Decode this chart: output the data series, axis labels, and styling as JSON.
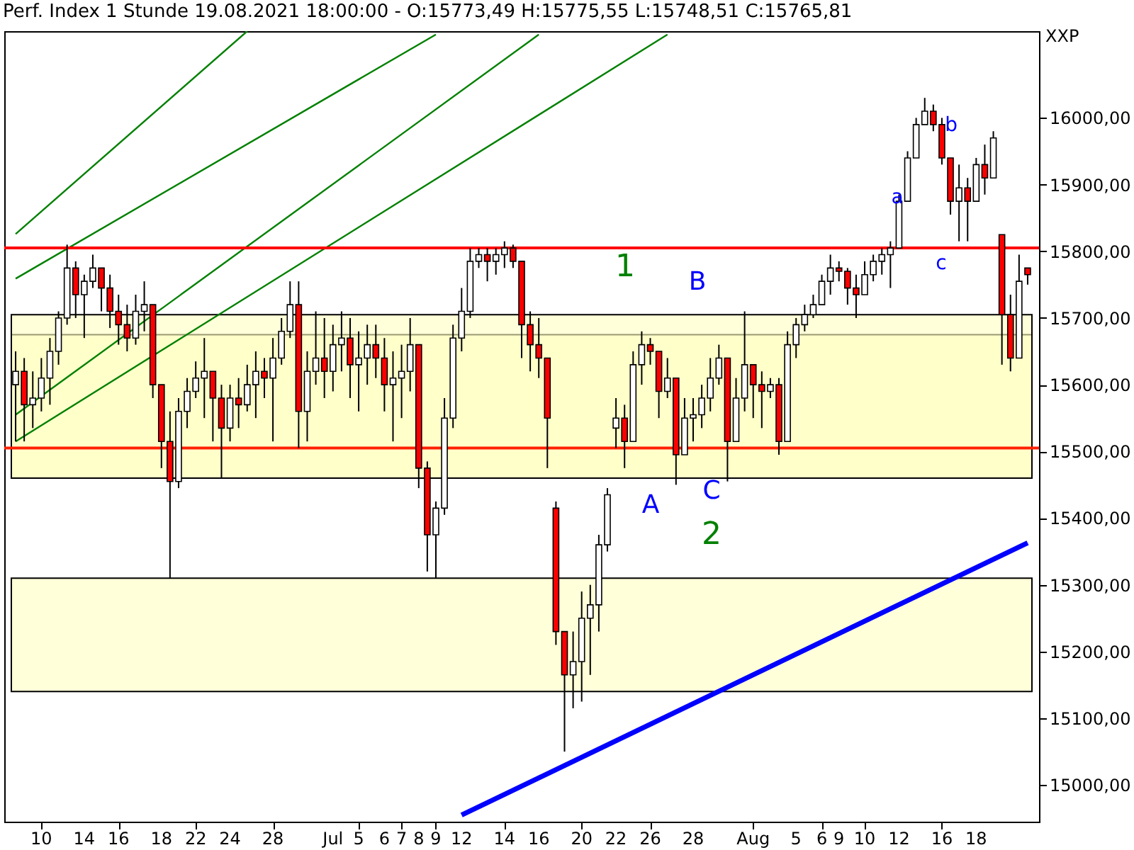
{
  "chart_data": {
    "type": "candlestick",
    "title": "Perf. Index 1 Stunde  19.08.2021 18:00:00 - O:15773,49 H:15775,55 L:15748,51 C:15765,81",
    "ylabel": "XXP",
    "categories": [
      null,
      null,
      null,
      "10",
      null,
      null,
      null,
      null,
      "14",
      null,
      null,
      null,
      "16",
      null,
      null,
      null,
      null,
      "18",
      null,
      null,
      null,
      "22",
      null,
      null,
      null,
      "24",
      null,
      null,
      null,
      null,
      "28",
      null,
      null,
      null,
      null,
      null,
      null,
      "Jul",
      null,
      null,
      "5",
      null,
      null,
      "6",
      null,
      "7",
      null,
      "8",
      null,
      "9",
      null,
      null,
      "12",
      null,
      null,
      null,
      null,
      "14",
      null,
      null,
      null,
      "16",
      null,
      null,
      null,
      null,
      "20",
      null,
      null,
      null,
      "22",
      null,
      null,
      null,
      "26",
      null,
      null,
      null,
      null,
      "28",
      null,
      null,
      null,
      null,
      null,
      null,
      "Aug",
      null,
      null,
      null,
      null,
      "5",
      null,
      null,
      "6",
      null,
      "9",
      null,
      null,
      "10",
      null,
      null,
      null,
      "12",
      null,
      null,
      null,
      null,
      "16",
      null,
      null,
      null,
      "18",
      null,
      null,
      null,
      null,
      null,
      null
    ],
    "ohlc": [
      [
        15600,
        15650,
        15515,
        15620
      ],
      [
        15620,
        15640,
        15515,
        15570
      ],
      [
        15570,
        15620,
        15535,
        15580
      ],
      [
        15580,
        15640,
        15560,
        15610
      ],
      [
        15610,
        15670,
        15570,
        15650
      ],
      [
        15650,
        15710,
        15630,
        15700
      ],
      [
        15700,
        15810,
        15690,
        15775
      ],
      [
        15775,
        15785,
        15700,
        15735
      ],
      [
        15735,
        15765,
        15670,
        15755
      ],
      [
        15755,
        15795,
        15745,
        15775
      ],
      [
        15775,
        15775,
        15710,
        15745
      ],
      [
        15745,
        15765,
        15685,
        15710
      ],
      [
        15710,
        15735,
        15660,
        15690
      ],
      [
        15690,
        15720,
        15650,
        15670
      ],
      [
        15670,
        15735,
        15660,
        15710
      ],
      [
        15710,
        15755,
        15680,
        15720
      ],
      [
        15720,
        15720,
        15580,
        15600
      ],
      [
        15600,
        15600,
        15475,
        15515
      ],
      [
        15515,
        15560,
        15310,
        15455
      ],
      [
        15455,
        15580,
        15445,
        15560
      ],
      [
        15560,
        15610,
        15535,
        15590
      ],
      [
        15590,
        15635,
        15580,
        15610
      ],
      [
        15610,
        15670,
        15550,
        15620
      ],
      [
        15620,
        15620,
        15515,
        15580
      ],
      [
        15580,
        15600,
        15460,
        15535
      ],
      [
        15535,
        15600,
        15515,
        15580
      ],
      [
        15580,
        15610,
        15535,
        15570
      ],
      [
        15570,
        15630,
        15560,
        15600
      ],
      [
        15600,
        15650,
        15550,
        15620
      ],
      [
        15620,
        15640,
        15580,
        15610
      ],
      [
        15610,
        15670,
        15515,
        15640
      ],
      [
        15640,
        15700,
        15630,
        15680
      ],
      [
        15680,
        15755,
        15670,
        15720
      ],
      [
        15720,
        15755,
        15505,
        15560
      ],
      [
        15560,
        15650,
        15515,
        15620
      ],
      [
        15620,
        15710,
        15600,
        15640
      ],
      [
        15640,
        15700,
        15580,
        15620
      ],
      [
        15620,
        15690,
        15590,
        15660
      ],
      [
        15660,
        15710,
        15620,
        15670
      ],
      [
        15670,
        15700,
        15580,
        15630
      ],
      [
        15630,
        15680,
        15560,
        15640
      ],
      [
        15640,
        15690,
        15600,
        15660
      ],
      [
        15660,
        15690,
        15610,
        15640
      ],
      [
        15640,
        15670,
        15560,
        15600
      ],
      [
        15600,
        15650,
        15515,
        15610
      ],
      [
        15610,
        15660,
        15550,
        15620
      ],
      [
        15620,
        15700,
        15590,
        15660
      ],
      [
        15660,
        15660,
        15445,
        15475
      ],
      [
        15475,
        15485,
        15320,
        15375
      ],
      [
        15375,
        15425,
        15310,
        15415
      ],
      [
        15415,
        15580,
        15405,
        15550
      ],
      [
        15550,
        15690,
        15535,
        15670
      ],
      [
        15670,
        15745,
        15650,
        15710
      ],
      [
        15710,
        15805,
        15700,
        15785
      ],
      [
        15785,
        15805,
        15775,
        15795
      ],
      [
        15795,
        15805,
        15755,
        15785
      ],
      [
        15785,
        15805,
        15765,
        15795
      ],
      [
        15795,
        15815,
        15775,
        15805
      ],
      [
        15805,
        15810,
        15775,
        15785
      ],
      [
        15785,
        15785,
        15640,
        15690
      ],
      [
        15690,
        15710,
        15620,
        15660
      ],
      [
        15660,
        15700,
        15610,
        15640
      ],
      [
        15640,
        15640,
        15475,
        15550
      ],
      [
        15415,
        15425,
        15210,
        15230
      ],
      [
        15230,
        15230,
        15050,
        15165
      ],
      [
        15165,
        15230,
        15115,
        15185
      ],
      [
        15185,
        15290,
        15125,
        15250
      ],
      [
        15250,
        15300,
        15165,
        15270
      ],
      [
        15270,
        15375,
        15230,
        15360
      ],
      [
        15360,
        15445,
        15350,
        15435
      ],
      [
        15535,
        15580,
        15505,
        15550
      ],
      [
        15550,
        15570,
        15475,
        15515
      ],
      [
        15515,
        15650,
        15515,
        15630
      ],
      [
        15630,
        15680,
        15600,
        15660
      ],
      [
        15660,
        15670,
        15630,
        15650
      ],
      [
        15650,
        15650,
        15550,
        15590
      ],
      [
        15590,
        15640,
        15580,
        15610
      ],
      [
        15610,
        15610,
        15450,
        15495
      ],
      [
        15495,
        15580,
        15495,
        15550
      ],
      [
        15550,
        15580,
        15515,
        15555
      ],
      [
        15555,
        15600,
        15535,
        15580
      ],
      [
        15580,
        15640,
        15560,
        15610
      ],
      [
        15610,
        15660,
        15600,
        15640
      ],
      [
        15640,
        15640,
        15455,
        15515
      ],
      [
        15515,
        15610,
        15515,
        15580
      ],
      [
        15580,
        15710,
        15560,
        15630
      ],
      [
        15630,
        15630,
        15550,
        15600
      ],
      [
        15600,
        15620,
        15535,
        15590
      ],
      [
        15590,
        15610,
        15580,
        15600
      ],
      [
        15600,
        15610,
        15495,
        15515
      ],
      [
        15515,
        15680,
        15515,
        15660
      ],
      [
        15660,
        15700,
        15640,
        15690
      ],
      [
        15690,
        15720,
        15680,
        15705
      ],
      [
        15705,
        15735,
        15700,
        15720
      ],
      [
        15720,
        15765,
        15720,
        15755
      ],
      [
        15755,
        15795,
        15735,
        15775
      ],
      [
        15775,
        15785,
        15755,
        15770
      ],
      [
        15770,
        15775,
        15720,
        15745
      ],
      [
        15745,
        15765,
        15700,
        15735
      ],
      [
        15735,
        15785,
        15735,
        15765
      ],
      [
        15765,
        15795,
        15755,
        15785
      ],
      [
        15785,
        15805,
        15765,
        15795
      ],
      [
        15795,
        15815,
        15745,
        15805
      ],
      [
        15805,
        15885,
        15805,
        15875
      ],
      [
        15875,
        15950,
        15875,
        15940
      ],
      [
        15940,
        16000,
        15940,
        15990
      ],
      [
        15990,
        16030,
        15990,
        16010
      ],
      [
        16010,
        16020,
        15980,
        15990
      ],
      [
        15990,
        16000,
        15930,
        15940
      ],
      [
        15940,
        15940,
        15855,
        15875
      ],
      [
        15875,
        15930,
        15815,
        15895
      ],
      [
        15895,
        15910,
        15815,
        15875
      ],
      [
        15875,
        15940,
        15875,
        15930
      ],
      [
        15930,
        15960,
        15885,
        15910
      ],
      [
        15910,
        15980,
        15910,
        15970
      ],
      [
        15825,
        15825,
        15630,
        15705
      ],
      [
        15705,
        15735,
        15620,
        15640
      ],
      [
        15640,
        15795,
        15640,
        15755
      ],
      [
        15775,
        15775,
        15750,
        15765
      ]
    ],
    "colors": [
      "#ffffff",
      "#ff0000",
      "#ffffff",
      "#ffffff",
      "#ffffff",
      "#ffffff",
      "#ffffff",
      "#ff0000",
      "#ffffff",
      "#ffffff",
      "#ff0000",
      "#ff0000",
      "#ff0000",
      "#ff0000",
      "#ffffff",
      "#ffffff",
      "#ff0000",
      "#ff0000",
      "#ff0000",
      "#ffffff",
      "#ffffff",
      "#ffffff",
      "#ffffff",
      "#ff0000",
      "#ff0000",
      "#ffffff",
      "#ff0000",
      "#ffffff",
      "#ffffff",
      "#ff0000",
      "#ffffff",
      "#ffffff",
      "#ffffff",
      "#ff0000",
      "#ffffff",
      "#ffffff",
      "#ff0000",
      "#ffffff",
      "#ffffff",
      "#ff0000",
      "#ffffff",
      "#ffffff",
      "#ff0000",
      "#ff0000",
      "#ffffff",
      "#ffffff",
      "#ffffff",
      "#ff0000",
      "#ff0000",
      "#ffffff",
      "#ffffff",
      "#ffffff",
      "#ffffff",
      "#ffffff",
      "#ffffff",
      "#ff0000",
      "#ffffff",
      "#ffffff",
      "#ff0000",
      "#ff0000",
      "#ff0000",
      "#ff0000",
      "#ff0000",
      "#ff0000",
      "#ff0000",
      "#ffffff",
      "#ffffff",
      "#ffffff",
      "#ffffff",
      "#ffffff",
      "#ffffff",
      "#ff0000",
      "#ffffff",
      "#ffffff",
      "#ff0000",
      "#ff0000",
      "#ffffff",
      "#ff0000",
      "#ffffff",
      "#ffffff",
      "#ffffff",
      "#ffffff",
      "#ffffff",
      "#ff0000",
      "#ffffff",
      "#ffffff",
      "#ff0000",
      "#ff0000",
      "#ffffff",
      "#ff0000",
      "#ffffff",
      "#ffffff",
      "#ffffff",
      "#ffffff",
      "#ffffff",
      "#ffffff",
      "#ff0000",
      "#ff0000",
      "#ff0000",
      "#ffffff",
      "#ffffff",
      "#ffffff",
      "#ffffff",
      "#ffffff",
      "#ffffff",
      "#ffffff",
      "#ffffff",
      "#ff0000",
      "#ff0000",
      "#ff0000",
      "#ffffff",
      "#ff0000",
      "#ffffff",
      "#ff0000",
      "#ffffff",
      "#ff0000",
      "#ff0000",
      "#ffffff",
      "#ff0000"
    ],
    "series": [
      {
        "type": "line",
        "color": "#008000",
        "values": [
          15826,
          null,
          null,
          null,
          null,
          null,
          null,
          null,
          null,
          null,
          null,
          null,
          null,
          null,
          null,
          null,
          null,
          null,
          null,
          null,
          null,
          null,
          null,
          null,
          null,
          null,
          null,
          16130,
          null,
          null,
          null,
          null,
          null,
          null,
          null,
          null,
          null,
          null,
          null,
          null,
          null,
          null,
          null,
          null,
          null,
          null,
          null,
          null,
          null,
          null,
          null,
          null,
          null,
          null,
          null,
          null,
          null,
          null,
          null,
          null,
          null,
          null,
          null,
          null,
          null,
          null,
          null,
          null,
          null,
          null,
          null,
          null,
          null,
          null,
          null,
          null,
          null,
          null,
          null,
          null,
          null,
          null,
          null,
          null,
          null,
          null,
          null,
          null,
          null,
          null,
          null,
          null,
          null,
          null,
          null,
          null,
          null,
          null,
          null,
          null,
          null,
          null,
          null,
          null,
          null,
          null,
          null,
          null,
          null,
          null,
          null,
          null,
          null,
          null,
          null,
          null,
          null,
          null,
          null
        ]
      },
      {
        "type": "line",
        "color": "#008000",
        "values": [
          15759,
          null,
          null,
          null,
          null,
          null,
          null,
          null,
          null,
          null,
          null,
          null,
          null,
          null,
          null,
          null,
          null,
          null,
          null,
          null,
          null,
          null,
          null,
          null,
          null,
          null,
          null,
          null,
          null,
          null,
          null,
          null,
          null,
          null,
          null,
          null,
          null,
          null,
          null,
          null,
          null,
          null,
          null,
          null,
          null,
          null,
          null,
          null,
          null,
          16125,
          null,
          null,
          null,
          null,
          null,
          null,
          null,
          null,
          null,
          null,
          null,
          null,
          null,
          null,
          null,
          null,
          null,
          null,
          null,
          null,
          null,
          null,
          null,
          null,
          null,
          null,
          null,
          null,
          null,
          null,
          null,
          null,
          null,
          null,
          null,
          null,
          null,
          null,
          null,
          null,
          null,
          null,
          null,
          null,
          null,
          null,
          null,
          null,
          null,
          null,
          null,
          null,
          null,
          null,
          null,
          null,
          null,
          null,
          null,
          null,
          null,
          null,
          null,
          null,
          null,
          null,
          null,
          null,
          null
        ]
      },
      {
        "type": "line",
        "color": "#008000",
        "values": [
          15555,
          null,
          null,
          null,
          null,
          null,
          null,
          null,
          null,
          null,
          null,
          null,
          null,
          null,
          null,
          null,
          null,
          null,
          null,
          null,
          null,
          null,
          null,
          null,
          null,
          null,
          null,
          null,
          null,
          null,
          null,
          null,
          null,
          null,
          null,
          null,
          null,
          null,
          null,
          null,
          null,
          null,
          null,
          null,
          null,
          null,
          null,
          null,
          null,
          null,
          null,
          null,
          null,
          null,
          null,
          null,
          null,
          null,
          null,
          null,
          null,
          16125,
          null,
          null,
          null,
          null,
          null,
          null,
          null,
          null,
          null,
          null,
          null,
          null,
          null,
          null,
          null,
          null,
          null,
          null,
          null,
          null,
          null,
          null,
          null,
          null,
          null,
          null,
          null,
          null,
          null,
          null,
          null,
          null,
          null,
          null,
          null,
          null,
          null,
          null,
          null,
          null,
          null,
          null,
          null,
          null,
          null,
          null,
          null,
          null,
          null,
          null,
          null,
          null,
          null,
          null,
          null,
          null,
          null
        ]
      },
      {
        "type": "line",
        "color": "#008000",
        "values": [
          15515,
          null,
          null,
          null,
          null,
          null,
          null,
          null,
          null,
          null,
          null,
          null,
          null,
          null,
          null,
          null,
          null,
          null,
          null,
          null,
          null,
          null,
          null,
          null,
          null,
          null,
          null,
          null,
          null,
          null,
          null,
          null,
          null,
          null,
          null,
          null,
          null,
          null,
          null,
          null,
          null,
          null,
          null,
          null,
          null,
          null,
          null,
          null,
          null,
          null,
          null,
          null,
          null,
          null,
          null,
          null,
          null,
          null,
          null,
          null,
          null,
          null,
          null,
          null,
          null,
          null,
          null,
          null,
          null,
          null,
          null,
          null,
          null,
          null,
          null,
          null,
          16125,
          null,
          null,
          null,
          null,
          null,
          null,
          null,
          null,
          null,
          null,
          null,
          null,
          null,
          null,
          null,
          null,
          null,
          null,
          null,
          null,
          null,
          null,
          null,
          null,
          null,
          null,
          null,
          null,
          null,
          null,
          null,
          null,
          null,
          null,
          null,
          null,
          null,
          null,
          null,
          null,
          null,
          null
        ]
      },
      {
        "type": "line",
        "color": "#0000ff",
        "values": [
          null,
          null,
          null,
          null,
          null,
          null,
          null,
          null,
          null,
          null,
          null,
          null,
          null,
          null,
          null,
          null,
          null,
          null,
          null,
          null,
          null,
          null,
          null,
          null,
          null,
          null,
          null,
          null,
          null,
          null,
          null,
          null,
          null,
          null,
          null,
          null,
          null,
          null,
          null,
          null,
          null,
          null,
          null,
          null,
          null,
          null,
          null,
          null,
          null,
          null,
          null,
          null,
          14955,
          null,
          null,
          null,
          null,
          null,
          null,
          null,
          null,
          null,
          null,
          null,
          null,
          null,
          null,
          null,
          null,
          null,
          null,
          null,
          null,
          null,
          null,
          null,
          null,
          null,
          null,
          null,
          null,
          null,
          null,
          null,
          null,
          null,
          null,
          null,
          null,
          null,
          null,
          null,
          null,
          null,
          null,
          null,
          null,
          null,
          null,
          null,
          null,
          null,
          null,
          null,
          null,
          null,
          null,
          null,
          null,
          null,
          null,
          null,
          null,
          null,
          null,
          null,
          null,
          null,
          15363
        ]
      }
    ],
    "ref_lines": [
      {
        "axis": "y",
        "value": 15805,
        "color": "#ff0000"
      },
      {
        "axis": "y",
        "value": 15505,
        "color": "#ff2000"
      }
    ],
    "bands": [
      {
        "axis": "y",
        "from": 15140,
        "to": 15310,
        "color": "#ffffc0"
      },
      {
        "axis": "y",
        "from": 15460,
        "to": 15675,
        "color": "#ffffc0"
      },
      {
        "axis": "y",
        "from": 15460,
        "to": 15705,
        "color": "#ffffc0"
      }
    ],
    "annotations": [
      "1",
      "B",
      "2",
      "A",
      "C",
      "a",
      "b",
      "c"
    ],
    "ylim": [
      14945,
      16130
    ],
    "yticks": [
      {
        "value": 15000,
        "label": "15000,00"
      },
      {
        "value": 15100,
        "label": "15100,00"
      },
      {
        "value": 15200,
        "label": "15200,00"
      },
      {
        "value": 15300,
        "label": "15300,00"
      },
      {
        "value": 15400,
        "label": "15400,00"
      },
      {
        "value": 15500,
        "label": "15500,00"
      },
      {
        "value": 15600,
        "label": "15600,00"
      },
      {
        "value": 15700,
        "label": "15700,00"
      },
      {
        "value": 15800,
        "label": "15800,00"
      },
      {
        "value": 15900,
        "label": "15900,00"
      },
      {
        "value": 16000,
        "label": "16000,00"
      }
    ],
    "grid": false
  }
}
